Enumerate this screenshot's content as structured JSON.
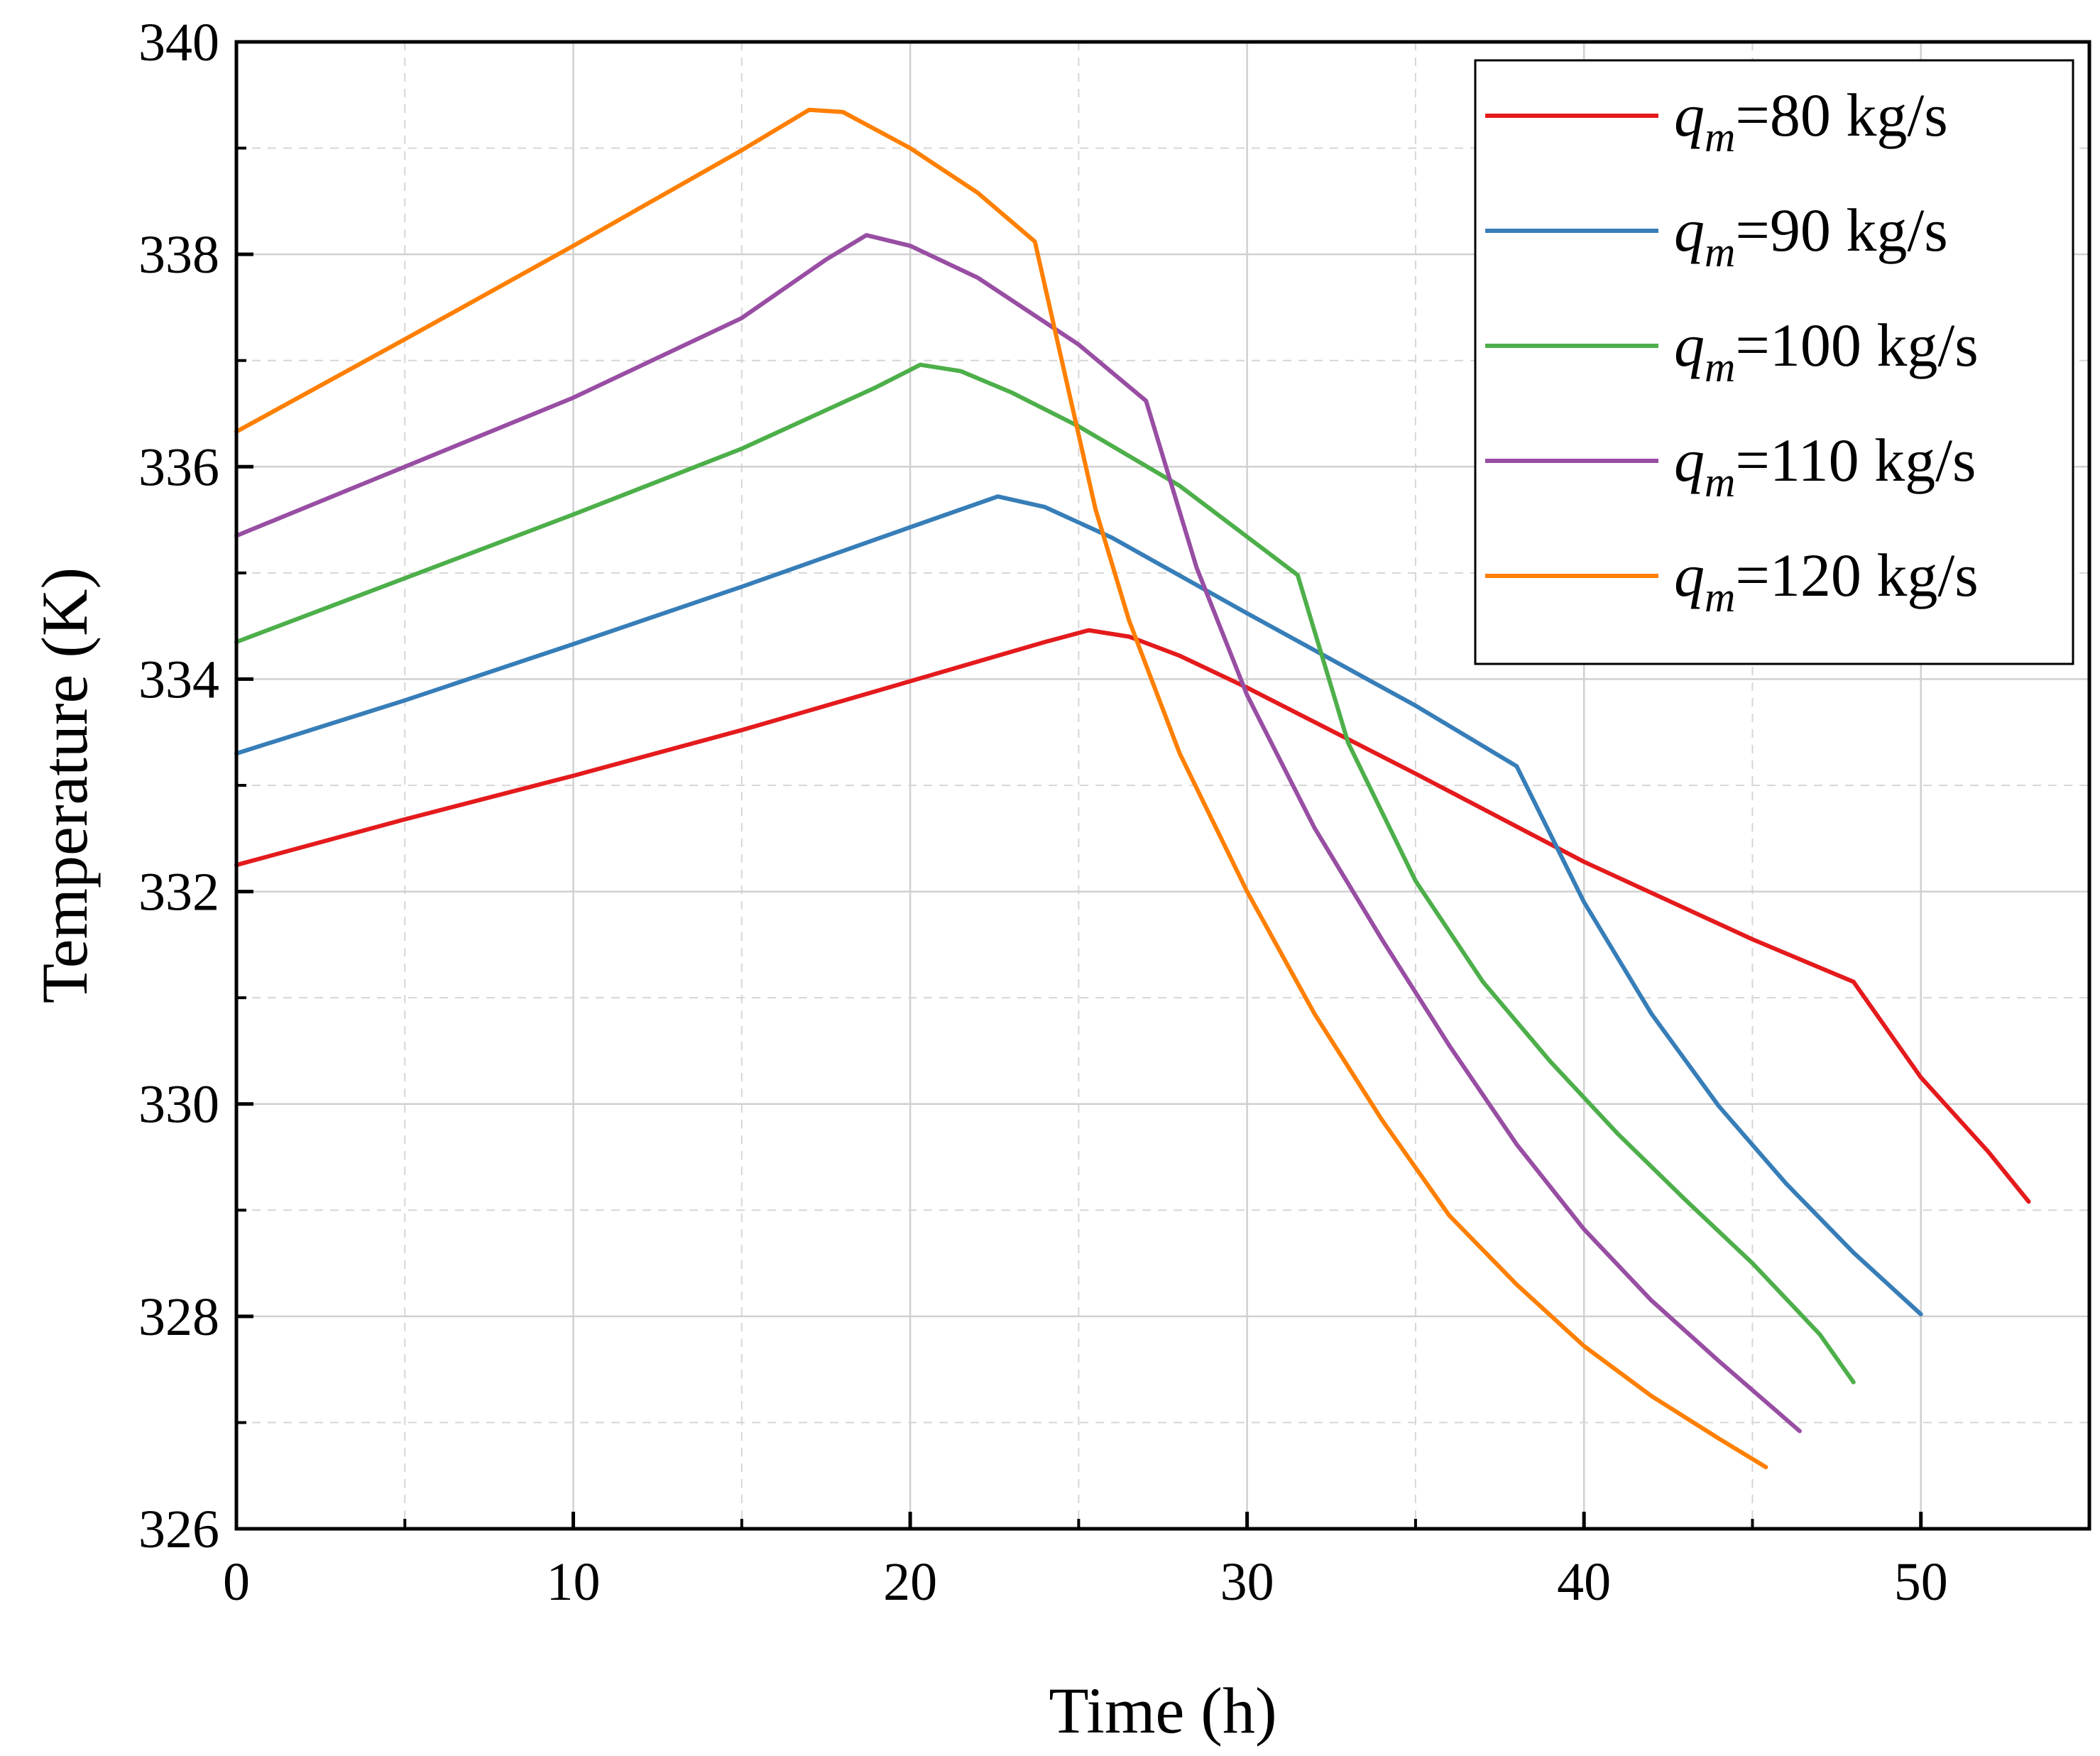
{
  "chart_data": {
    "type": "line",
    "title": "",
    "xlabel": "Time (h)",
    "ylabel": "Temperature (K)",
    "xlim": [
      0,
      55
    ],
    "ylim": [
      326,
      340
    ],
    "x_ticks": [
      0,
      10,
      20,
      30,
      40,
      50
    ],
    "x_tick_labels": [
      "0",
      "10",
      "20",
      "30",
      "40",
      "50"
    ],
    "x_minor_ticks": [
      5,
      15,
      25,
      35,
      45
    ],
    "y_ticks": [
      326,
      328,
      330,
      332,
      334,
      336,
      338,
      340
    ],
    "y_tick_labels": [
      "326",
      "328",
      "330",
      "332",
      "334",
      "336",
      "338",
      "340"
    ],
    "y_minor_ticks": [
      327,
      329,
      331,
      333,
      335,
      337,
      339
    ],
    "grid": true,
    "legend_position": "top-right",
    "series": [
      {
        "name": "q_m=80 kg/s",
        "legend": {
          "symbol": "q",
          "subscript": "m",
          "text": "=80 kg/s"
        },
        "color": "#e41a1c",
        "points": [
          [
            0,
            332.25
          ],
          [
            5,
            332.68
          ],
          [
            10,
            333.09
          ],
          [
            15,
            333.52
          ],
          [
            20,
            333.98
          ],
          [
            24,
            334.35
          ],
          [
            25.3,
            334.46
          ],
          [
            26.5,
            334.4
          ],
          [
            28,
            334.22
          ],
          [
            30,
            333.92
          ],
          [
            35,
            333.11
          ],
          [
            40,
            332.28
          ],
          [
            45,
            331.55
          ],
          [
            48,
            331.15
          ],
          [
            50,
            330.25
          ],
          [
            52,
            329.55
          ],
          [
            53.2,
            329.08
          ]
        ]
      },
      {
        "name": "q_m=90 kg/s",
        "legend": {
          "symbol": "q",
          "subscript": "m",
          "text": "=90 kg/s"
        },
        "color": "#377eb8",
        "points": [
          [
            0,
            333.3
          ],
          [
            5,
            333.8
          ],
          [
            10,
            334.33
          ],
          [
            15,
            334.87
          ],
          [
            20,
            335.43
          ],
          [
            22.6,
            335.72
          ],
          [
            24,
            335.62
          ],
          [
            26,
            335.33
          ],
          [
            30,
            334.62
          ],
          [
            35,
            333.75
          ],
          [
            38,
            333.18
          ],
          [
            40,
            331.9
          ],
          [
            42,
            330.85
          ],
          [
            44,
            329.98
          ],
          [
            46,
            329.25
          ],
          [
            48,
            328.6
          ],
          [
            50,
            328.02
          ]
        ]
      },
      {
        "name": "q_m=100 kg/s",
        "legend": {
          "symbol": "q",
          "subscript": "m",
          "text": "=100 kg/s"
        },
        "color": "#4daf4a",
        "points": [
          [
            0,
            334.35
          ],
          [
            5,
            334.95
          ],
          [
            10,
            335.55
          ],
          [
            15,
            336.17
          ],
          [
            19,
            336.75
          ],
          [
            20.3,
            336.96
          ],
          [
            21.5,
            336.9
          ],
          [
            23,
            336.7
          ],
          [
            25,
            336.38
          ],
          [
            28,
            335.82
          ],
          [
            31.5,
            334.98
          ],
          [
            33,
            333.4
          ],
          [
            35,
            332.1
          ],
          [
            37,
            331.15
          ],
          [
            39,
            330.4
          ],
          [
            41,
            329.72
          ],
          [
            43,
            329.1
          ],
          [
            45,
            328.5
          ],
          [
            47,
            327.83
          ],
          [
            48,
            327.38
          ]
        ]
      },
      {
        "name": "q_m=110 kg/s",
        "legend": {
          "symbol": "q",
          "subscript": "m",
          "text": "=110 kg/s"
        },
        "color": "#984ea3",
        "points": [
          [
            0,
            335.35
          ],
          [
            5,
            336.0
          ],
          [
            10,
            336.65
          ],
          [
            15,
            337.4
          ],
          [
            17.5,
            337.95
          ],
          [
            18.7,
            338.18
          ],
          [
            20,
            338.08
          ],
          [
            22,
            337.78
          ],
          [
            25,
            337.15
          ],
          [
            27,
            336.62
          ],
          [
            28.5,
            335.05
          ],
          [
            30,
            333.85
          ],
          [
            32,
            332.6
          ],
          [
            34,
            331.55
          ],
          [
            36,
            330.55
          ],
          [
            38,
            329.62
          ],
          [
            40,
            328.82
          ],
          [
            42,
            328.15
          ],
          [
            44,
            327.58
          ],
          [
            46.4,
            326.92
          ]
        ]
      },
      {
        "name": "q_m=120 kg/s",
        "legend": {
          "symbol": "q",
          "subscript": "m",
          "text": "=120 kg/s"
        },
        "color": "#ff7f00",
        "points": [
          [
            0,
            336.33
          ],
          [
            5,
            337.2
          ],
          [
            10,
            338.08
          ],
          [
            15,
            338.98
          ],
          [
            17,
            339.36
          ],
          [
            18,
            339.34
          ],
          [
            20,
            339.0
          ],
          [
            22,
            338.58
          ],
          [
            23.7,
            338.12
          ],
          [
            24.5,
            337.0
          ],
          [
            25.5,
            335.6
          ],
          [
            26.5,
            334.55
          ],
          [
            28,
            333.3
          ],
          [
            30,
            332.0
          ],
          [
            32,
            330.85
          ],
          [
            34,
            329.85
          ],
          [
            36,
            328.95
          ],
          [
            38,
            328.3
          ],
          [
            40,
            327.72
          ],
          [
            42,
            327.25
          ],
          [
            44,
            326.85
          ],
          [
            45.4,
            326.58
          ]
        ]
      }
    ]
  }
}
